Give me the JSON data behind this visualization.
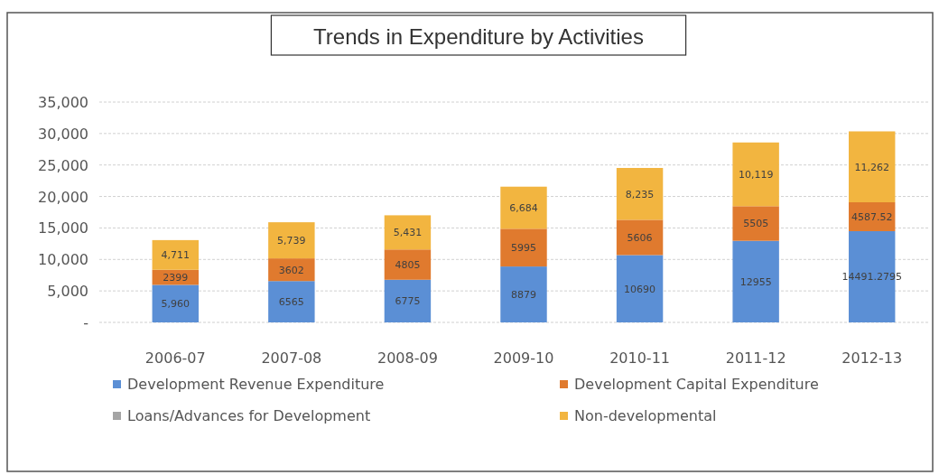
{
  "chart_data": {
    "type": "bar",
    "title": "Trends in Expenditure  by Activities",
    "stacked": true,
    "categories": [
      "2006-07",
      "2007-08",
      "2008-09",
      "2009-10",
      "2010-11",
      "2011-12",
      "2012-13"
    ],
    "series": [
      {
        "name": "Development Revenue Expenditure",
        "color": "#5b8fd5",
        "values": [
          5960,
          6565,
          6775,
          8879,
          10690,
          12955,
          14491.2795
        ],
        "value_labels": [
          "5,960",
          "6565",
          "6775",
          "8879",
          "10690",
          "12955",
          "14491.2795"
        ]
      },
      {
        "name": "Development Capital Expenditure",
        "color": "#e07a2e",
        "values": [
          2399,
          3602,
          4805,
          5995,
          5606,
          5505,
          4587.52
        ],
        "value_labels": [
          "2399",
          "3602",
          "4805",
          "5995",
          "5606",
          "5505",
          "4587.52"
        ]
      },
      {
        "name": "Loans/Advances for Development",
        "color": "#a5a5a5",
        "values": [
          null,
          null,
          null,
          null,
          null,
          null,
          null
        ]
      },
      {
        "name": "Non-developmental",
        "color": "#f2b540",
        "values": [
          4711,
          5739,
          5431,
          6684,
          8235,
          10119,
          11262
        ],
        "value_labels": [
          "4,711",
          "5,739",
          "5,431",
          "6,684",
          "8,235",
          "10,119",
          "11,262"
        ]
      }
    ],
    "ylim": [
      0,
      35000
    ],
    "yticks": [
      {
        "value": 0,
        "label": "-"
      },
      {
        "value": 5000,
        "label": "5,000"
      },
      {
        "value": 10000,
        "label": "10,000"
      },
      {
        "value": 15000,
        "label": "15,000"
      },
      {
        "value": 20000,
        "label": "20,000"
      },
      {
        "value": 25000,
        "label": "25,000"
      },
      {
        "value": 30000,
        "label": "30,000"
      },
      {
        "value": 35000,
        "label": "35,000"
      }
    ],
    "grid": "y",
    "legend": "bottom"
  }
}
